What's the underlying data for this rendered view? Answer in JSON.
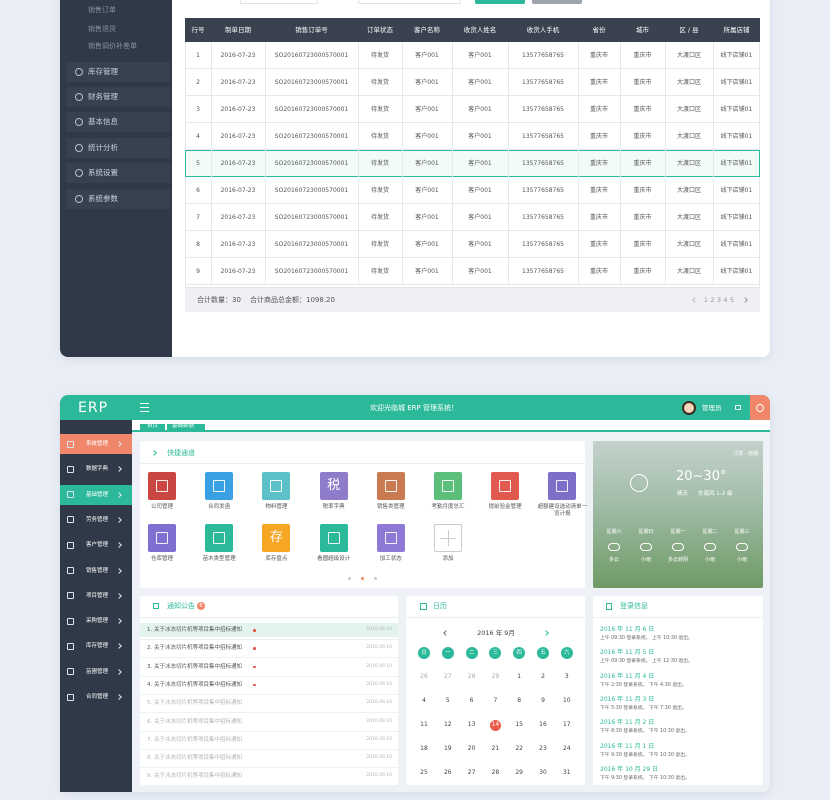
{
  "top": {
    "sidebar": {
      "submenu": [
        "销售订单",
        "销售退货",
        "销售调价补差单"
      ],
      "menu": [
        "库存管理",
        "财务管理",
        "基本信息",
        "统计分析",
        "系统设置",
        "系统参数"
      ]
    },
    "table": {
      "headers": [
        "行号",
        "制单日期",
        "销售订单号",
        "订单状态",
        "客户名称",
        "收货人姓名",
        "收货人手机",
        "省份",
        "城市",
        "区 / 县",
        "所属店铺"
      ],
      "rows": [
        [
          "1",
          "2016-07-23",
          "SO20160723000570001",
          "待发货",
          "客户001",
          "客户001",
          "13577658765",
          "重庆市",
          "重庆市",
          "大渡口区",
          "线下店铺01"
        ],
        [
          "2",
          "2016-07-23",
          "SO20160723000570001",
          "待发货",
          "客户001",
          "客户001",
          "13577658765",
          "重庆市",
          "重庆市",
          "大渡口区",
          "线下店铺01"
        ],
        [
          "3",
          "2016-07-23",
          "SO20160723000570001",
          "待发货",
          "客户001",
          "客户001",
          "13577658765",
          "重庆市",
          "重庆市",
          "大渡口区",
          "线下店铺01"
        ],
        [
          "4",
          "2016-07-23",
          "SO20160723000570001",
          "待发货",
          "客户001",
          "客户001",
          "13577658765",
          "重庆市",
          "重庆市",
          "大渡口区",
          "线下店铺01"
        ],
        [
          "5",
          "2016-07-23",
          "SO20160723000570001",
          "待发货",
          "客户001",
          "客户001",
          "13577658765",
          "重庆市",
          "重庆市",
          "大渡口区",
          "线下店铺01"
        ],
        [
          "6",
          "2016-07-23",
          "SO20160723000570001",
          "待发货",
          "客户001",
          "客户001",
          "13577658765",
          "重庆市",
          "重庆市",
          "大渡口区",
          "线下店铺01"
        ],
        [
          "7",
          "2016-07-23",
          "SO20160723000570001",
          "待发货",
          "客户001",
          "客户001",
          "13577658765",
          "重庆市",
          "重庆市",
          "大渡口区",
          "线下店铺01"
        ],
        [
          "8",
          "2016-07-23",
          "SO20160723000570001",
          "待发货",
          "客户001",
          "客户001",
          "13577658765",
          "重庆市",
          "重庆市",
          "大渡口区",
          "线下店铺01"
        ],
        [
          "9",
          "2016-07-23",
          "SO20160723000570001",
          "待发货",
          "客户001",
          "客户001",
          "13577658765",
          "重庆市",
          "重庆市",
          "大渡口区",
          "线下店铺01"
        ]
      ]
    },
    "footer": {
      "total_qty": "合计数量：30",
      "total_amount": "合计商品总金额：1098.20",
      "pages": [
        "1",
        "2",
        "3",
        "4",
        "5"
      ]
    }
  },
  "bottom": {
    "header": {
      "logo": "ERP",
      "welcome": "欢迎光临城 ERP 管理系统！",
      "user": "管理员"
    },
    "tabs": [
      "首页",
      "基础数据"
    ],
    "sidebar": [
      "系统管理",
      "数据字典",
      "基础管理",
      "劳务管理",
      "客户管理",
      "销售管理",
      "项目管理",
      "采购管理",
      "库存管理",
      "苗圃管理",
      "合同管理"
    ],
    "quick": {
      "title": "快捷通道",
      "items": [
        {
          "label": "公司管理"
        },
        {
          "label": "合同发函"
        },
        {
          "label": "物料管理"
        },
        {
          "label": "税率字典",
          "glyph": "税"
        },
        {
          "label": "销售类管理"
        },
        {
          "label": "考勤月度总汇"
        },
        {
          "label": "提前验金管理"
        },
        {
          "label": "超额建设选动清单一览计报"
        },
        {
          "label": "仓库管理"
        },
        {
          "label": "苗木类型管理"
        },
        {
          "label": "库存盘点",
          "glyph": "存"
        },
        {
          "label": "看圆超级设计"
        },
        {
          "label": "加工状态"
        },
        {
          "label": "添加"
        }
      ]
    },
    "weather": {
      "location": "江苏 · 南通",
      "temp": "20~30°",
      "condition": "晴天",
      "wind": "东南风 1-2 级",
      "days": [
        {
          "day": "星期六",
          "cond": "多云"
        },
        {
          "day": "星期日",
          "cond": "小雨"
        },
        {
          "day": "星期一",
          "cond": "多云转阴"
        },
        {
          "day": "星期二",
          "cond": "小雨"
        },
        {
          "day": "星期三",
          "cond": "小雨"
        }
      ]
    },
    "notice": {
      "title": "通知公告",
      "badge": "6",
      "items": [
        {
          "text": "1. 关于冰冻切片机等项目集中招标通知",
          "date": "2016.09.10"
        },
        {
          "text": "2. 关于冰冻切片机等项目集中招标通知",
          "date": "2016.09.10"
        },
        {
          "text": "3. 关于冰冻切片机等项目集中招标通知",
          "date": "2016.09.10"
        },
        {
          "text": "4. 关于冰冻切片机等项目集中招标通知",
          "date": "2016.09.10"
        },
        {
          "text": "5. 关于冰冻切片机等项目集中招标通知",
          "date": "2016.09.10"
        },
        {
          "text": "6. 关于冰冻切片机等项目集中招标通知",
          "date": "2016.09.10"
        },
        {
          "text": "7. 关于冰冻切片机等项目集中招标通知",
          "date": "2016.09.10"
        },
        {
          "text": "8. 关于冰冻切片机等项目集中招标通知",
          "date": "2016.09.10"
        },
        {
          "text": "9. 关于冰冻切片机等项目集中招标通知",
          "date": "2016.09.10"
        }
      ]
    },
    "calendar": {
      "title": "日历",
      "month": "2016 年  9月",
      "weekdays": [
        "日",
        "一",
        "二",
        "三",
        "四",
        "五",
        "六"
      ],
      "dates": [
        [
          26,
          27,
          28,
          29,
          1,
          2,
          3
        ],
        [
          4,
          5,
          6,
          7,
          8,
          9,
          10
        ],
        [
          11,
          12,
          13,
          14,
          15,
          16,
          17
        ],
        [
          18,
          19,
          20,
          21,
          22,
          23,
          24
        ],
        [
          25,
          26,
          27,
          28,
          29,
          30,
          31
        ]
      ]
    },
    "login": {
      "title": "登录信息",
      "entries": [
        {
          "date": "2016 年 11 月 6 日",
          "detail": "上午 09:30 登录系统，  上午 10:30 退出。"
        },
        {
          "date": "2016 年 11 月 5 日",
          "detail": "上午 09:30 登录系统，  上午 12:30 退出。"
        },
        {
          "date": "2016 年 11 月 4 日",
          "detail": "下午 2:30 登录系统，  下午 4:30 退出。"
        },
        {
          "date": "2016 年 11 月 3 日",
          "detail": "下午 5:30 登录系统，  下午 7:30 退出。"
        },
        {
          "date": "2016 年 11 月 2 日",
          "detail": "下午 8:30 登录系统，  下午 10:30 退出。"
        },
        {
          "date": "2016 年 11 月 1 日",
          "detail": "下午 9:30 登录系统，  下午 10:30 退出。"
        },
        {
          "date": "2016 年 10 月 29 日",
          "detail": "下午 9:30 登录系统，  下午 10:30 退出。"
        }
      ]
    }
  }
}
